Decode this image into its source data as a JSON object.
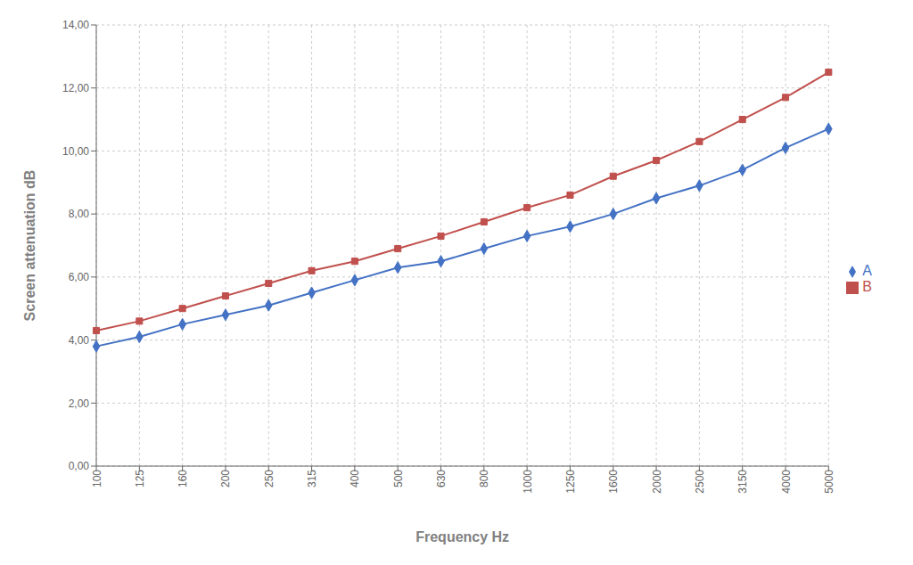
{
  "chart_data": {
    "type": "line",
    "xlabel": "Frequency Hz",
    "ylabel": "Screen attenuation dB",
    "categories": [
      "100",
      "125",
      "160",
      "200",
      "250",
      "315",
      "400",
      "500",
      "630",
      "800",
      "1000",
      "1250",
      "1600",
      "2000",
      "2500",
      "3150",
      "4000",
      "5000"
    ],
    "series": [
      {
        "name": "A",
        "color": "#4472C4",
        "marker": "diamond",
        "values": [
          3.8,
          4.1,
          4.5,
          4.8,
          5.1,
          5.5,
          5.9,
          6.3,
          6.5,
          6.9,
          7.3,
          7.6,
          8.0,
          8.5,
          8.9,
          9.4,
          10.1,
          10.7
        ]
      },
      {
        "name": "B",
        "color": "#C0504D",
        "marker": "square",
        "values": [
          4.3,
          4.6,
          5.0,
          5.4,
          5.8,
          6.2,
          6.5,
          6.9,
          7.3,
          7.75,
          8.2,
          8.6,
          9.2,
          9.7,
          10.3,
          11.0,
          11.7,
          12.5
        ]
      }
    ],
    "ylim": [
      0,
      14
    ],
    "yticks": [
      {
        "value": 0,
        "label": "0,00"
      },
      {
        "value": 2,
        "label": "2,00"
      },
      {
        "value": 4,
        "label": "4,00"
      },
      {
        "value": 6,
        "label": "6,00"
      },
      {
        "value": 8,
        "label": "8,00"
      },
      {
        "value": 10,
        "label": "10,00"
      },
      {
        "value": 12,
        "label": "12,00"
      },
      {
        "value": 14,
        "label": "14,00"
      }
    ],
    "grid": true,
    "legend": "right"
  }
}
